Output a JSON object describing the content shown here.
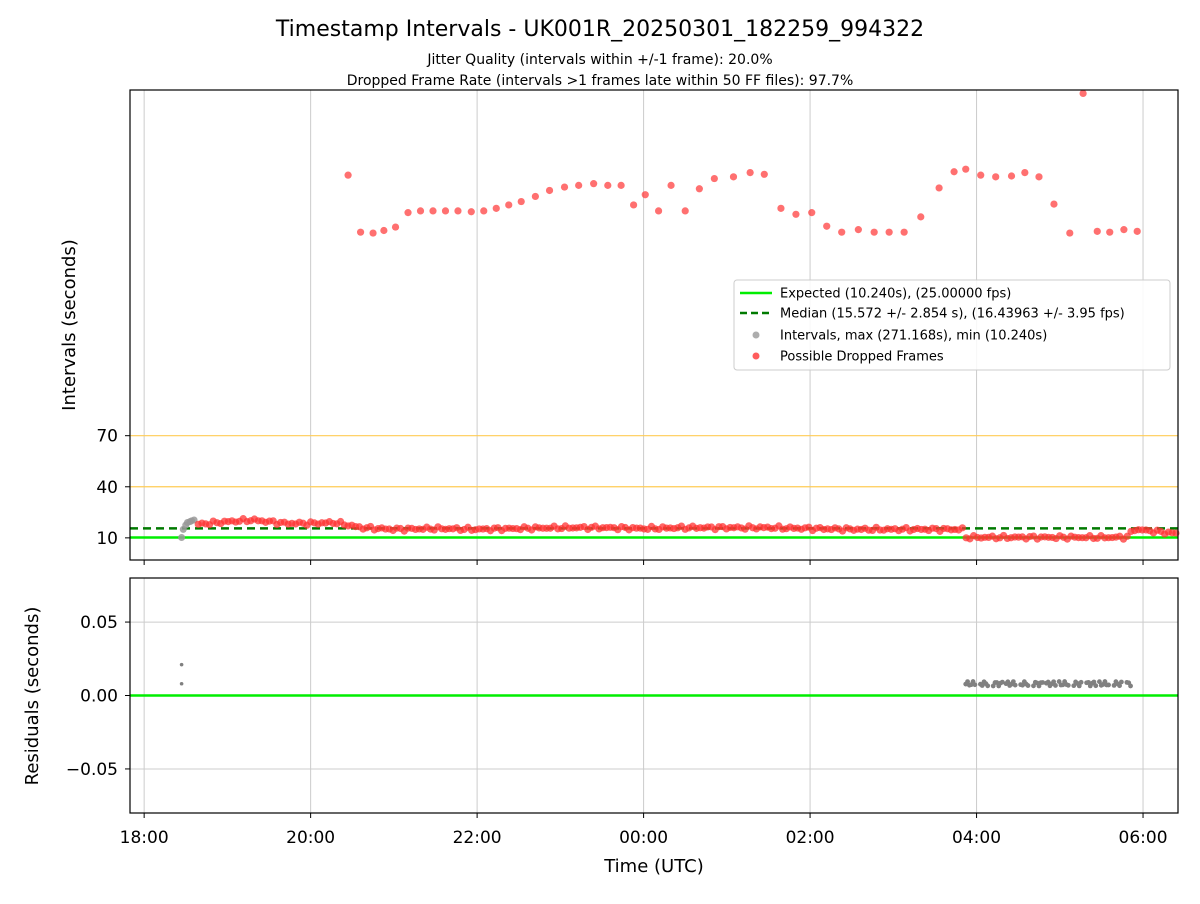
{
  "figure": {
    "title": "Timestamp Intervals - UK001R_20250301_182259_994322",
    "subtitle_1": "Jitter Quality (intervals within +/-1 frame): 20.0%",
    "subtitle_2": "Dropped Frame Rate (intervals >1 frames late within 50 FF files): 97.7%"
  },
  "chart_data": [
    {
      "type": "scatter",
      "ylabel": "Intervals (seconds)",
      "xlim_hours": [
        17.83,
        30.42
      ],
      "ylim": [
        -3,
        273
      ],
      "yticks": [
        10,
        40,
        70
      ],
      "grid": true,
      "legend": {
        "placement": "center-right",
        "entries": [
          {
            "label": "Expected (10.240s), (25.00000 fps)",
            "kind": "line-solid",
            "color": "#00ee00"
          },
          {
            "label": "Median (15.572 +/- 2.854 s), (16.43963 +/- 3.95 fps)",
            "kind": "line-dashed",
            "color": "#007a00"
          },
          {
            "label": "Intervals, max (271.168s), min (10.240s)",
            "kind": "marker",
            "color": "#999999"
          },
          {
            "label": "Possible Dropped Frames",
            "kind": "marker",
            "color": "#ff3333"
          }
        ]
      },
      "expected_line": 10.24,
      "median_line": 15.572,
      "threshold_lines": {
        "values": [
          40,
          70
        ],
        "color": "#ffcc55"
      },
      "intervals_gray": {
        "x_hours": [
          18.45,
          18.47,
          18.5,
          18.52,
          18.55,
          18.57,
          18.6
        ],
        "y": [
          10.2,
          15.0,
          17.5,
          19.0,
          19.5,
          20.0,
          20.5
        ]
      },
      "dropped_high": {
        "x_hours": [
          20.45,
          20.6,
          20.75,
          20.88,
          21.02,
          21.17,
          21.32,
          21.47,
          21.62,
          21.77,
          21.93,
          22.08,
          22.23,
          22.38,
          22.53,
          22.7,
          22.87,
          23.05,
          23.22,
          23.4,
          23.57,
          23.73,
          23.88,
          24.02,
          24.18,
          24.33,
          24.5,
          24.67,
          24.85,
          25.08,
          25.28,
          25.45,
          25.65,
          25.83,
          26.02,
          26.2,
          26.38,
          26.58,
          26.77,
          26.95,
          27.13,
          27.33,
          27.55,
          27.73,
          27.87,
          28.05,
          28.23,
          28.42,
          28.58,
          28.75,
          28.93,
          29.12,
          29.28,
          29.45,
          29.6,
          29.77,
          29.93
        ],
        "y": [
          223.0,
          189.5,
          189.0,
          190.5,
          192.5,
          201.0,
          202.0,
          202.0,
          202.0,
          202.0,
          201.5,
          202.0,
          203.5,
          205.5,
          207.5,
          210.5,
          214.0,
          216.0,
          217.0,
          218.0,
          217.0,
          217.0,
          205.5,
          211.5,
          202.0,
          217.0,
          202.0,
          215.0,
          221.0,
          222.0,
          224.5,
          223.5,
          203.5,
          200.0,
          201.0,
          193.0,
          189.5,
          191.0,
          189.5,
          189.5,
          189.5,
          198.5,
          215.5,
          225.0,
          226.5,
          223.0,
          222.0,
          222.5,
          224.5,
          222.0,
          206.0,
          189.0,
          271.0,
          190.0,
          189.5,
          191.0,
          190.0
        ]
      },
      "dropped_low_band": [
        {
          "x_hours": 18.65,
          "y": 18.0
        },
        {
          "x_hours": 19.0,
          "y": 19.5
        },
        {
          "x_hours": 19.3,
          "y": 20.5
        },
        {
          "x_hours": 19.7,
          "y": 18.5
        },
        {
          "x_hours": 20.0,
          "y": 18.5
        },
        {
          "x_hours": 20.3,
          "y": 19.0
        },
        {
          "x_hours": 20.6,
          "y": 16.0
        },
        {
          "x_hours": 21.0,
          "y": 15.0
        },
        {
          "x_hours": 21.5,
          "y": 15.5
        },
        {
          "x_hours": 22.0,
          "y": 15.0
        },
        {
          "x_hours": 22.5,
          "y": 15.5
        },
        {
          "x_hours": 23.0,
          "y": 16.0
        },
        {
          "x_hours": 23.5,
          "y": 16.0
        },
        {
          "x_hours": 24.0,
          "y": 15.5
        },
        {
          "x_hours": 24.5,
          "y": 16.0
        },
        {
          "x_hours": 25.0,
          "y": 16.0
        },
        {
          "x_hours": 25.5,
          "y": 16.0
        },
        {
          "x_hours": 26.0,
          "y": 15.5
        },
        {
          "x_hours": 26.5,
          "y": 15.0
        },
        {
          "x_hours": 27.0,
          "y": 15.0
        },
        {
          "x_hours": 27.5,
          "y": 15.0
        },
        {
          "x_hours": 27.83,
          "y": 15.0
        },
        {
          "x_hours": 27.85,
          "y": 10.3
        },
        {
          "x_hours": 28.5,
          "y": 10.3
        },
        {
          "x_hours": 29.0,
          "y": 10.3
        },
        {
          "x_hours": 29.5,
          "y": 10.3
        },
        {
          "x_hours": 29.8,
          "y": 10.3
        },
        {
          "x_hours": 29.9,
          "y": 15.0
        },
        {
          "x_hours": 30.2,
          "y": 13.5
        },
        {
          "x_hours": 30.42,
          "y": 12.5
        }
      ]
    },
    {
      "type": "scatter",
      "ylabel": "Residuals (seconds)",
      "xlabel": "Time (UTC)",
      "xlim_hours": [
        17.83,
        30.42
      ],
      "ylim": [
        -0.08,
        0.08
      ],
      "yticks": [
        0.05,
        0.0,
        -0.05
      ],
      "ytick_labels": [
        "0.05",
        "0.00",
        "−0.05"
      ],
      "xticks_hours": [
        18,
        20,
        22,
        24,
        26,
        28,
        30
      ],
      "xtick_labels": [
        "18:00",
        "20:00",
        "22:00",
        "00:00",
        "02:00",
        "04:00",
        "06:00"
      ],
      "grid": true,
      "zero_line": 0.0,
      "points": {
        "x_hours": [
          18.45,
          18.45
        ],
        "y": [
          0.021,
          0.008
        ]
      },
      "cluster": {
        "x_start_hours": 27.87,
        "x_end_hours": 29.85,
        "y": 0.008
      }
    }
  ],
  "colors": {
    "expected": "#00ee00",
    "median": "#007a00",
    "threshold": "#ffcc55",
    "dropped": "#ff3333",
    "intervals": "#999999",
    "residual": "#808080"
  }
}
